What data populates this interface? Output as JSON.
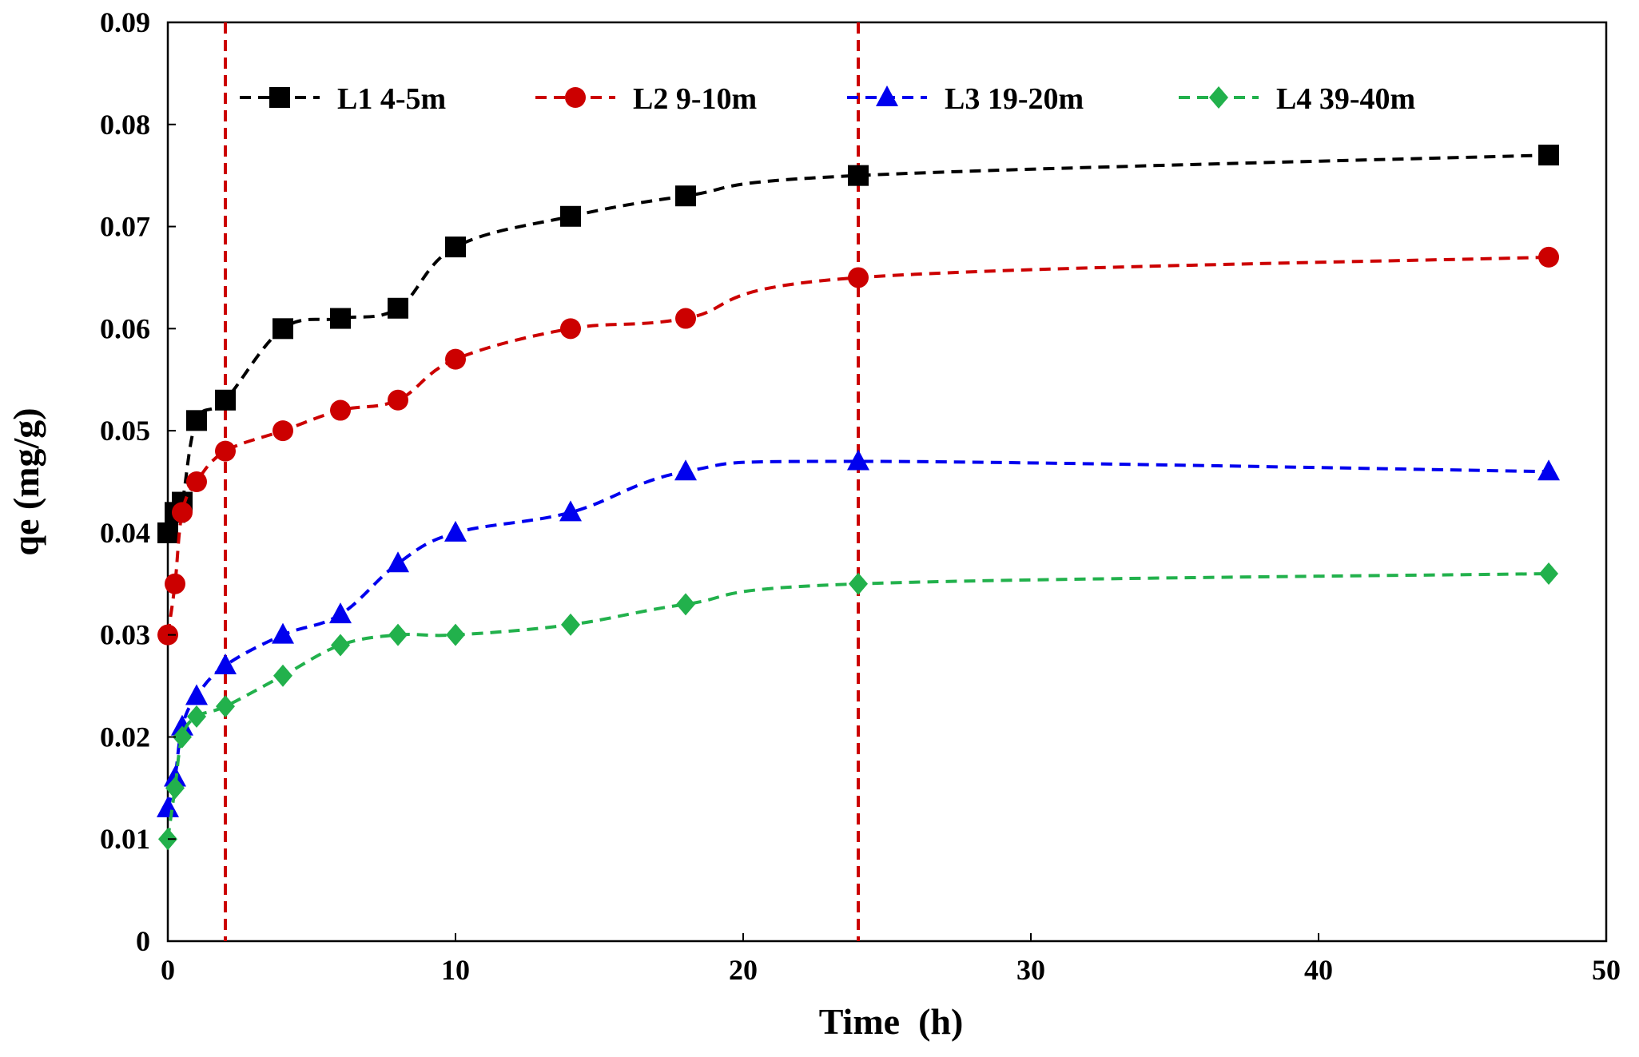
{
  "chart_data": {
    "type": "line",
    "title": "",
    "xlabel": "Time  (h)",
    "ylabel": "qe (mg/g)",
    "xlim": [
      0,
      50
    ],
    "ylim": [
      0,
      0.09
    ],
    "xticks": [
      0,
      10,
      20,
      30,
      40,
      50
    ],
    "yticks": [
      0,
      0.01,
      0.02,
      0.03,
      0.04,
      0.05,
      0.06,
      0.07,
      0.08,
      0.09
    ],
    "xtick_labels": [
      "0",
      "10",
      "20",
      "30",
      "40",
      "50"
    ],
    "ytick_labels": [
      "0",
      "0.01",
      "0.02",
      "0.03",
      "0.04",
      "0.05",
      "0.06",
      "0.07",
      "0.08",
      "0.09"
    ],
    "grid": false,
    "legend_position": "top",
    "reference_lines": [
      {
        "axis": "x",
        "value": 2,
        "color": "#cc0000",
        "style": "dashed"
      },
      {
        "axis": "x",
        "value": 24,
        "color": "#cc0000",
        "style": "dashed"
      }
    ],
    "x": [
      0,
      0.25,
      0.5,
      1,
      2,
      4,
      6,
      8,
      10,
      14,
      18,
      24,
      48
    ],
    "series": [
      {
        "name": "L1 4-5m",
        "color": "#000000",
        "marker": "square",
        "values": [
          0.04,
          0.042,
          0.043,
          0.051,
          0.053,
          0.06,
          0.061,
          0.062,
          0.068,
          0.071,
          0.073,
          0.075,
          0.077
        ]
      },
      {
        "name": "L2 9-10m",
        "color": "#cc0000",
        "marker": "circle",
        "values": [
          0.03,
          0.035,
          0.042,
          0.045,
          0.048,
          0.05,
          0.052,
          0.053,
          0.057,
          0.06,
          0.061,
          0.065,
          0.067
        ]
      },
      {
        "name": "L3 19-20m",
        "color": "#0000ee",
        "marker": "triangle",
        "values": [
          0.013,
          0.016,
          0.021,
          0.024,
          0.027,
          0.03,
          0.032,
          0.037,
          0.04,
          0.042,
          0.046,
          0.047,
          0.046
        ]
      },
      {
        "name": "L4 39-40m",
        "color": "#22b14c",
        "marker": "diamond",
        "values": [
          0.01,
          0.015,
          0.02,
          0.022,
          0.023,
          0.026,
          0.029,
          0.03,
          0.03,
          0.031,
          0.033,
          0.035,
          0.036
        ]
      }
    ]
  }
}
